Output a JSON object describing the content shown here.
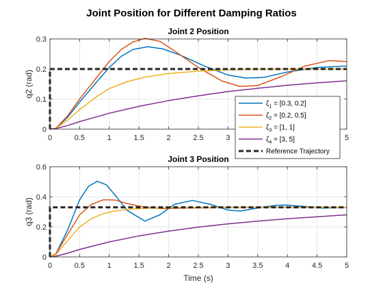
{
  "figure_title": "Joint Position for Different Damping Ratios",
  "colors": {
    "series": [
      "#0072BD",
      "#D95319",
      "#EDB120",
      "#7E2F8E"
    ],
    "reference": "#262626",
    "grid": "#e6e6e6",
    "axes": "#262626"
  },
  "chart_data": [
    {
      "type": "line",
      "title": "Joint 2 Position",
      "xlabel": "",
      "ylabel": "q2 (rad)",
      "xlim": [
        0,
        5
      ],
      "ylim": [
        0,
        0.3
      ],
      "xticks": [
        0,
        0.5,
        1,
        1.5,
        2,
        2.5,
        3,
        3.5,
        4,
        4.5,
        5
      ],
      "yticks": [
        0,
        0.1,
        0.2,
        0.3
      ],
      "xtick_labels": [
        "0",
        "0.5",
        "1",
        "1.5",
        "2",
        "2.5",
        "3",
        "3.5",
        "4",
        "4.5",
        "5"
      ],
      "ytick_labels": [
        "0",
        "0.1",
        "0.2",
        "0.3"
      ],
      "grid": true,
      "legend_position": "lower-right",
      "series": [
        {
          "legend_sym": "ζ",
          "legend_sub": "1",
          "legend_rest": " = [0.3, 0.2]",
          "x": [
            0,
            0.1,
            0.3,
            0.5,
            0.8,
            1.0,
            1.2,
            1.4,
            1.65,
            1.9,
            2.2,
            2.6,
            3.0,
            3.3,
            3.6,
            4.0,
            4.5,
            5.0
          ],
          "y": [
            0,
            0.003,
            0.04,
            0.09,
            0.16,
            0.205,
            0.242,
            0.265,
            0.274,
            0.267,
            0.246,
            0.21,
            0.18,
            0.17,
            0.172,
            0.19,
            0.205,
            0.21
          ]
        },
        {
          "legend_sym": "ζ",
          "legend_sub": "2",
          "legend_rest": " = [0.2, 0.5]",
          "x": [
            0,
            0.1,
            0.3,
            0.5,
            0.8,
            1.0,
            1.2,
            1.4,
            1.6,
            1.85,
            2.1,
            2.5,
            2.9,
            3.2,
            3.5,
            3.9,
            4.3,
            4.7,
            5.0
          ],
          "y": [
            0,
            0.003,
            0.045,
            0.1,
            0.175,
            0.225,
            0.265,
            0.29,
            0.302,
            0.292,
            0.26,
            0.205,
            0.16,
            0.142,
            0.145,
            0.175,
            0.21,
            0.228,
            0.225
          ]
        },
        {
          "legend_sym": "ζ",
          "legend_sub": "3",
          "legend_rest": " = [1, 1]",
          "x": [
            0,
            0.1,
            0.3,
            0.5,
            0.8,
            1.0,
            1.3,
            1.6,
            2.0,
            2.5,
            3.0,
            3.5,
            4.0,
            5.0
          ],
          "y": [
            0,
            0.003,
            0.03,
            0.065,
            0.11,
            0.135,
            0.158,
            0.173,
            0.185,
            0.193,
            0.197,
            0.199,
            0.2,
            0.2
          ]
        },
        {
          "legend_sym": "ζ",
          "legend_sub": "4",
          "legend_rest": " = [3, 5]",
          "x": [
            0,
            0.1,
            0.3,
            0.5,
            1.0,
            1.5,
            2.0,
            2.5,
            3.0,
            3.5,
            4.0,
            4.5,
            5.0
          ],
          "y": [
            0,
            0.002,
            0.012,
            0.025,
            0.053,
            0.076,
            0.095,
            0.111,
            0.125,
            0.136,
            0.146,
            0.154,
            0.161
          ]
        },
        {
          "legend_sym": "",
          "legend_sub": "",
          "legend_rest": "Reference Trajectory",
          "dashed": true,
          "x": [
            0,
            0,
            5
          ],
          "y": [
            0,
            0.2,
            0.2
          ]
        }
      ]
    },
    {
      "type": "line",
      "title": "Joint 3 Position",
      "xlabel": "Time (s)",
      "ylabel": "q3 (rad)",
      "xlim": [
        0,
        5
      ],
      "ylim": [
        0,
        0.6
      ],
      "xticks": [
        0,
        0.5,
        1,
        1.5,
        2,
        2.5,
        3,
        3.5,
        4,
        4.5,
        5
      ],
      "yticks": [
        0,
        0.2,
        0.4,
        0.6
      ],
      "xtick_labels": [
        "0",
        "0.5",
        "1",
        "1.5",
        "2",
        "2.5",
        "3",
        "3.5",
        "4",
        "4.5",
        "5"
      ],
      "ytick_labels": [
        "0",
        "0.2",
        "0.4",
        "0.6"
      ],
      "grid": true,
      "series": [
        {
          "x": [
            0,
            0.1,
            0.3,
            0.5,
            0.65,
            0.8,
            0.95,
            1.1,
            1.3,
            1.6,
            1.85,
            2.1,
            2.4,
            2.7,
            3.0,
            3.2,
            3.5,
            3.8,
            4.0,
            4.3,
            4.6,
            5.0
          ],
          "y": [
            0,
            0.02,
            0.18,
            0.38,
            0.47,
            0.503,
            0.48,
            0.41,
            0.31,
            0.238,
            0.28,
            0.35,
            0.376,
            0.35,
            0.312,
            0.305,
            0.325,
            0.343,
            0.345,
            0.335,
            0.325,
            0.33
          ]
        },
        {
          "x": [
            0,
            0.1,
            0.3,
            0.5,
            0.7,
            0.9,
            1.1,
            1.3,
            1.6,
            1.9,
            2.3,
            3.0,
            4.0,
            5.0
          ],
          "y": [
            0,
            0.02,
            0.15,
            0.28,
            0.35,
            0.38,
            0.378,
            0.355,
            0.33,
            0.322,
            0.325,
            0.33,
            0.33,
            0.33
          ]
        },
        {
          "x": [
            0,
            0.1,
            0.3,
            0.5,
            0.7,
            0.9,
            1.1,
            1.3,
            1.6,
            2.0,
            2.5,
            3.0,
            4.0,
            5.0
          ],
          "y": [
            0,
            0.015,
            0.11,
            0.2,
            0.255,
            0.288,
            0.306,
            0.316,
            0.323,
            0.327,
            0.329,
            0.33,
            0.33,
            0.33
          ]
        },
        {
          "x": [
            0,
            0.1,
            0.3,
            0.5,
            1.0,
            1.5,
            2.0,
            2.5,
            3.0,
            3.5,
            4.0,
            4.5,
            5.0
          ],
          "y": [
            0,
            0.005,
            0.025,
            0.05,
            0.1,
            0.14,
            0.172,
            0.198,
            0.22,
            0.238,
            0.254,
            0.267,
            0.28
          ]
        },
        {
          "dashed": true,
          "x": [
            0,
            0,
            5
          ],
          "y": [
            0,
            0.33,
            0.33
          ]
        }
      ]
    }
  ]
}
